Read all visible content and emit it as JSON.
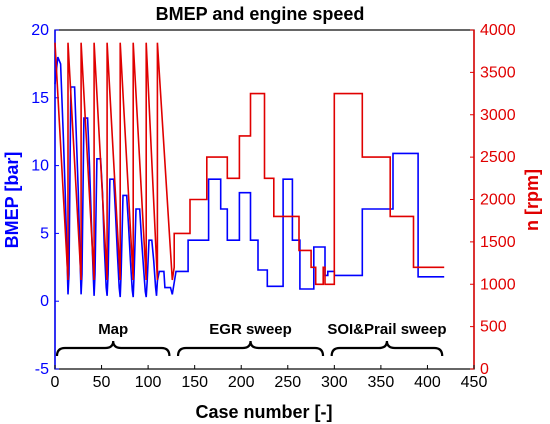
{
  "chart_data": {
    "type": "line",
    "title": "BMEP and engine speed",
    "xlabel": "Case number [-]",
    "ylabel_left": "BMEP [bar]",
    "ylabel_right": "n [rpm]",
    "xlim": [
      0,
      450
    ],
    "ylim_left": [
      -5,
      20
    ],
    "ylim_right": [
      0,
      4000
    ],
    "x_ticks": [
      "0",
      "50",
      "100",
      "150",
      "200",
      "250",
      "300",
      "350",
      "400",
      "450"
    ],
    "y_left_ticks": [
      "-5",
      "0",
      "5",
      "10",
      "15",
      "20"
    ],
    "y_right_ticks": [
      "0",
      "500",
      "1000",
      "1500",
      "2000",
      "2500",
      "3000",
      "3500",
      "4000"
    ],
    "grid": false,
    "series": [
      {
        "axis": "left",
        "color": "#0000ff",
        "points": [
          [
            0,
            16.0
          ],
          [
            3,
            18.0
          ],
          [
            6,
            17.5
          ],
          [
            9,
            12
          ],
          [
            11,
            8
          ],
          [
            13,
            3
          ],
          [
            14,
            0.5
          ],
          [
            15,
            2
          ],
          [
            17,
            15.8
          ],
          [
            21,
            15.8
          ],
          [
            23,
            12
          ],
          [
            25,
            8
          ],
          [
            27,
            3
          ],
          [
            28,
            0.5
          ],
          [
            29,
            2
          ],
          [
            31,
            13.5
          ],
          [
            35,
            13.5
          ],
          [
            37,
            10
          ],
          [
            39,
            6
          ],
          [
            41,
            2
          ],
          [
            42,
            0.4
          ],
          [
            43,
            2
          ],
          [
            45,
            10.5
          ],
          [
            49,
            10.5
          ],
          [
            51,
            8
          ],
          [
            53,
            4
          ],
          [
            55,
            1
          ],
          [
            56,
            0.4
          ],
          [
            57,
            2
          ],
          [
            59,
            9.0
          ],
          [
            63,
            9.0
          ],
          [
            65,
            6.5
          ],
          [
            67,
            3.5
          ],
          [
            69,
            1
          ],
          [
            70,
            0.3
          ],
          [
            71,
            2
          ],
          [
            73,
            7.8
          ],
          [
            77,
            7.8
          ],
          [
            79,
            5.5
          ],
          [
            81,
            3
          ],
          [
            83,
            0.8
          ],
          [
            84,
            0.3
          ],
          [
            85,
            2
          ],
          [
            87,
            6.8
          ],
          [
            91,
            6.8
          ],
          [
            93,
            4.5
          ],
          [
            95,
            2.5
          ],
          [
            97,
            0.7
          ],
          [
            98,
            0.3
          ],
          [
            99,
            1.5
          ],
          [
            101,
            4.5
          ],
          [
            104,
            4.5
          ],
          [
            106,
            3
          ],
          [
            108,
            1
          ],
          [
            109,
            0.4
          ],
          [
            110,
            1.5
          ],
          [
            112,
            2.2
          ],
          [
            117,
            2.2
          ],
          [
            118,
            1
          ],
          [
            120,
            1.0
          ],
          [
            124,
            1.0
          ],
          [
            126,
            0.5
          ],
          [
            130,
            2.2
          ],
          [
            143,
            2.2
          ],
          [
            143,
            4.5
          ],
          [
            165,
            4.5
          ],
          [
            165,
            9.0
          ],
          [
            178,
            9.0
          ],
          [
            178,
            6.8
          ],
          [
            185,
            6.8
          ],
          [
            185,
            4.5
          ],
          [
            198,
            4.5
          ],
          [
            198,
            8.0
          ],
          [
            210,
            8.0
          ],
          [
            210,
            4.5
          ],
          [
            218,
            4.5
          ],
          [
            218,
            2.3
          ],
          [
            228,
            2.3
          ],
          [
            228,
            1.1
          ],
          [
            245,
            1.1
          ],
          [
            245,
            9.0
          ],
          [
            255,
            9.0
          ],
          [
            255,
            4.5
          ],
          [
            263,
            4.5
          ],
          [
            263,
            0.9
          ],
          [
            278,
            0.9
          ],
          [
            278,
            4.0
          ],
          [
            290,
            4.0
          ],
          [
            290,
            1.9
          ],
          [
            293,
            1.9
          ],
          [
            293,
            2.2
          ],
          [
            300,
            2.2
          ],
          [
            300,
            1.9
          ],
          [
            330,
            1.9
          ],
          [
            330,
            6.8
          ],
          [
            363,
            6.8
          ],
          [
            363,
            10.9
          ],
          [
            390,
            10.9
          ],
          [
            390,
            1.8
          ],
          [
            418,
            1.8
          ]
        ]
      },
      {
        "axis": "right",
        "color": "#e00000",
        "points": [
          [
            0,
            3850
          ],
          [
            14,
            1050
          ],
          [
            14,
            3850
          ],
          [
            28,
            1050
          ],
          [
            28,
            3850
          ],
          [
            42,
            1050
          ],
          [
            42,
            3850
          ],
          [
            56,
            1050
          ],
          [
            56,
            3850
          ],
          [
            70,
            1050
          ],
          [
            70,
            3850
          ],
          [
            84,
            1050
          ],
          [
            84,
            3850
          ],
          [
            98,
            1050
          ],
          [
            98,
            3850
          ],
          [
            110,
            1050
          ],
          [
            110,
            3850
          ],
          [
            126,
            1050
          ],
          [
            126,
            1050
          ],
          [
            128,
            1200
          ],
          [
            128,
            1600
          ],
          [
            145,
            1600
          ],
          [
            145,
            2000
          ],
          [
            163,
            2000
          ],
          [
            163,
            2500
          ],
          [
            185,
            2500
          ],
          [
            185,
            2250
          ],
          [
            198,
            2250
          ],
          [
            198,
            2750
          ],
          [
            210,
            2750
          ],
          [
            210,
            3250
          ],
          [
            225,
            3250
          ],
          [
            225,
            2250
          ],
          [
            235,
            2250
          ],
          [
            235,
            1800
          ],
          [
            262,
            1800
          ],
          [
            262,
            1400
          ],
          [
            275,
            1400
          ],
          [
            275,
            1200
          ],
          [
            280,
            1200
          ],
          [
            280,
            1000
          ],
          [
            288,
            1000
          ],
          [
            288,
            1200
          ],
          [
            290,
            1200
          ],
          [
            290,
            1000
          ],
          [
            300,
            1000
          ],
          [
            300,
            3250
          ],
          [
            330,
            3250
          ],
          [
            330,
            2500
          ],
          [
            360,
            2500
          ],
          [
            360,
            1800
          ],
          [
            385,
            1800
          ],
          [
            385,
            1200
          ],
          [
            418,
            1200
          ]
        ]
      }
    ],
    "annotations": [
      {
        "text": "Map",
        "range": [
          0,
          125
        ]
      },
      {
        "text": "EGR sweep",
        "range": [
          130,
          290
        ]
      },
      {
        "text": "SOI&Prail sweep",
        "range": [
          295,
          418
        ]
      }
    ]
  }
}
